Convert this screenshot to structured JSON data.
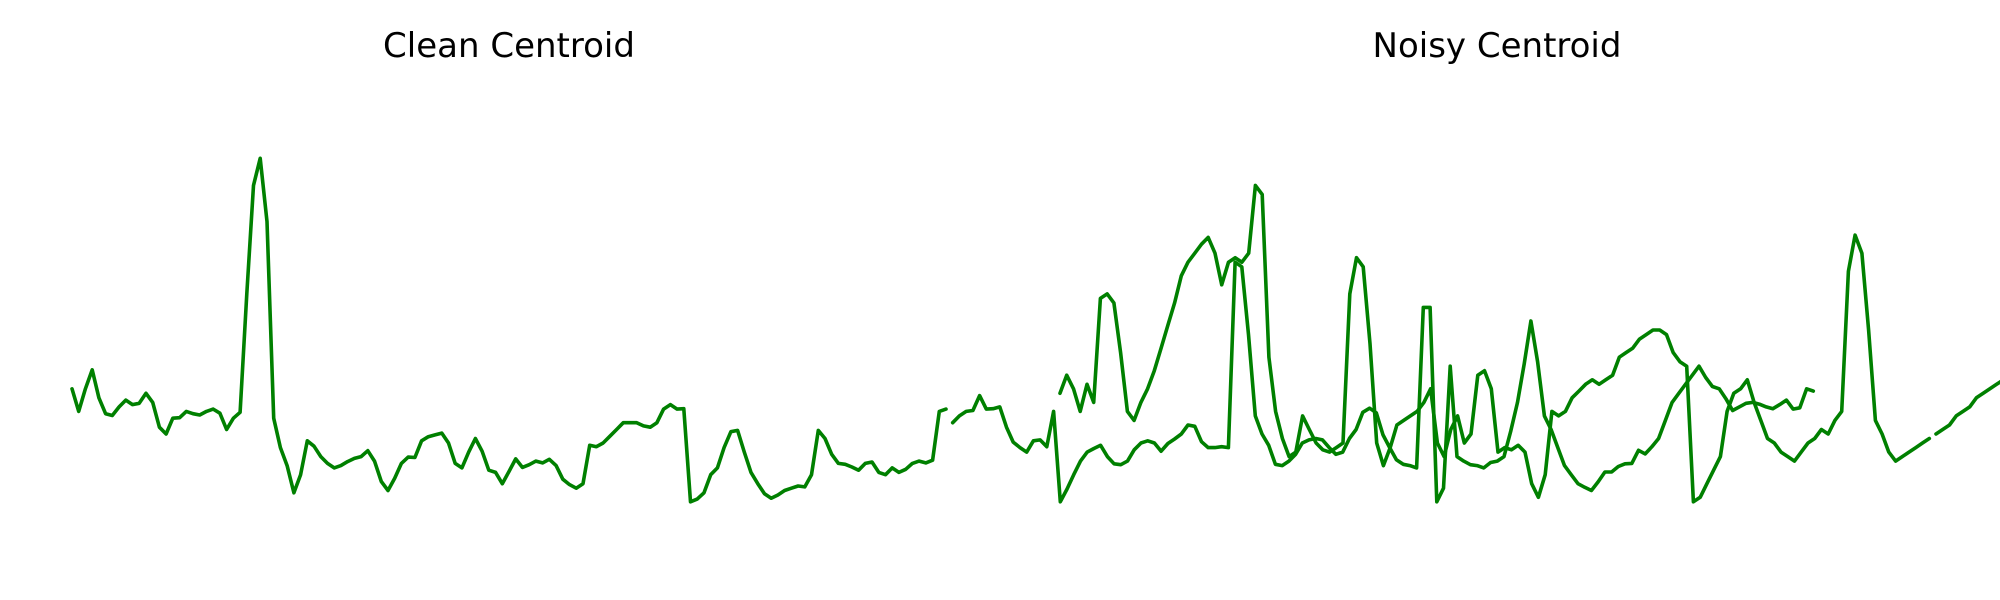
{
  "chart_data": [
    {
      "type": "line",
      "title": "Clean Centroid",
      "color": "#008000",
      "axes": "off",
      "grid": false,
      "xlim": [
        0,
        130
      ],
      "ylim": [
        0,
        1
      ],
      "series": [
        {
          "values": [
            0.35,
            0.3,
            0.35,
            0.392,
            0.33,
            0.295,
            0.291,
            0.31,
            0.325,
            0.315,
            0.318,
            0.34,
            0.32,
            0.265,
            0.25,
            0.285,
            0.286,
            0.3,
            0.295,
            0.292,
            0.3,
            0.305,
            0.296,
            0.26,
            0.285,
            0.298,
            0.56,
            0.8,
            0.86,
            0.72,
            0.285,
            0.22,
            0.18,
            0.12,
            0.16,
            0.235,
            0.223,
            0.2,
            0.185,
            0.175,
            0.18,
            0.189,
            0.196,
            0.2,
            0.213,
            0.19,
            0.145,
            0.125,
            0.152,
            0.185,
            0.199,
            0.198,
            0.235,
            0.244,
            0.248,
            0.252,
            0.23,
            0.185,
            0.175,
            0.21,
            0.24,
            0.212,
            0.17,
            0.165,
            0.14,
            0.167,
            0.195,
            0.176,
            0.182,
            0.19,
            0.186,
            0.194,
            0.18,
            0.15,
            0.138,
            0.13,
            0.14,
            0.225,
            0.222,
            0.23,
            0.245,
            0.26,
            0.275,
            0.275,
            0.275,
            0.268,
            0.265,
            0.275,
            0.305,
            0.315,
            0.305,
            0.306,
            0.1,
            0.106,
            0.12,
            0.16,
            0.175,
            0.22,
            0.255,
            0.258,
            0.21,
            0.165,
            0.14,
            0.118,
            0.108,
            0.115,
            0.125,
            0.13,
            0.135,
            0.133,
            0.16,
            0.258,
            0.24,
            0.205,
            0.185,
            0.183,
            0.177,
            0.17,
            0.185,
            0.188,
            0.165,
            0.16,
            0.175,
            0.165,
            0.172,
            0.185,
            0.19,
            0.186,
            0.192,
            0.3,
            0.305
          ]
        },
        {
          "values": [
            0.275,
            0.29,
            0.3,
            0.302,
            0.335,
            0.305,
            0.306,
            0.31,
            0.265,
            0.232,
            0.22,
            0.21,
            0.235,
            0.237,
            0.222,
            0.3,
            0.1,
            0.128,
            0.16,
            0.19,
            0.21,
            0.218,
            0.225,
            0.2,
            0.184,
            0.182,
            0.19,
            0.215,
            0.23,
            0.235,
            0.23,
            0.212,
            0.229,
            0.239,
            0.25,
            0.27,
            0.267,
            0.233,
            0.22,
            0.22,
            0.222,
            0.22,
            0.63,
            0.62,
            0.47,
            0.29,
            0.25,
            0.225,
            0.183,
            0.18,
            0.19,
            0.205,
            0.23,
            0.237,
            0.24,
            0.237,
            0.22,
            0.205,
            0.21,
            0.24,
            0.26,
            0.298,
            0.307,
            0.297,
            0.248,
            0.22,
            0.193,
            0.183,
            0.18,
            0.175,
            0.53,
            0.53,
            0.1,
            0.13,
            0.4,
            0.2,
            0.19,
            0.182,
            0.18,
            0.175,
            0.187,
            0.19,
            0.2,
            0.256,
            0.32,
            0.405,
            0.5,
            0.41,
            0.29,
            0.26,
            0.22,
            0.18,
            0.16,
            0.14,
            0.132,
            0.125,
            0.144,
            0.166,
            0.166,
            0.178,
            0.184,
            0.185,
            0.214,
            0.206,
            0.222,
            0.24,
            0.28,
            0.32,
            0.34,
            0.36,
            0.38,
            0.4,
            0.375,
            0.355,
            0.35,
            0.328,
            0.302,
            0.31,
            0.318,
            0.32,
            0.316,
            0.31,
            0.306,
            0.315,
            0.325,
            0.305,
            0.308,
            0.35,
            0.345
          ]
        }
      ]
    },
    {
      "type": "line",
      "title": "Noisy Centroid",
      "color": "#008000",
      "axes": "off",
      "grid": false,
      "xlim": [
        0,
        130
      ],
      "ylim": [
        0,
        1
      ],
      "series": [
        {
          "values": [
            0.34,
            0.38,
            0.35,
            0.3,
            0.36,
            0.32,
            0.55,
            0.56,
            0.54,
            0.43,
            0.3,
            0.28,
            0.32,
            0.35,
            0.39,
            0.44,
            0.49,
            0.54,
            0.6,
            0.63,
            0.65,
            0.67,
            0.685,
            0.65,
            0.58,
            0.63,
            0.64,
            0.63,
            0.65,
            0.8,
            0.78,
            0.42,
            0.3,
            0.24,
            0.2,
            0.21,
            0.29,
            0.26,
            0.23,
            0.215,
            0.21,
            0.22,
            0.23,
            0.56,
            0.64,
            0.62,
            0.45,
            0.23,
            0.18,
            0.22,
            0.27,
            0.28,
            0.29,
            0.3,
            0.32,
            0.35,
            0.23,
            0.2,
            0.26,
            0.29,
            0.23,
            0.25,
            0.38,
            0.39,
            0.35,
            0.21,
            0.22,
            0.215,
            0.225,
            0.21,
            0.14,
            0.11,
            0.16,
            0.3,
            0.29,
            0.3,
            0.33,
            0.345,
            0.36,
            0.37,
            0.36,
            0.37,
            0.38,
            0.42,
            0.43,
            0.44,
            0.46,
            0.47,
            0.48,
            0.48,
            0.47,
            0.43,
            0.41,
            0.4,
            0.1,
            0.11,
            0.14,
            0.17,
            0.2,
            0.3,
            0.34,
            0.35,
            0.37,
            0.32,
            0.28,
            0.24,
            0.23,
            0.21,
            0.2,
            0.19,
            0.21,
            0.23,
            0.24,
            0.26,
            0.25,
            0.28,
            0.3,
            0.61,
            0.69,
            0.65,
            0.48,
            0.28,
            0.25,
            0.21,
            0.19,
            0.2,
            0.21,
            0.22,
            0.23,
            0.24
          ]
        },
        {
          "values": [
            0.25,
            0.26,
            0.27,
            0.29,
            0.3,
            0.31,
            0.33,
            0.34,
            0.35,
            0.36,
            0.37,
            0.38,
            0.39,
            0.4,
            0.42,
            0.44,
            0.47,
            0.48,
            0.49,
            0.5,
            0.5,
            0.49,
            0.47,
            0.45,
            0.42,
            0.4,
            0.38,
            0.37,
            0.36,
            0.35,
            0.34,
            0.33,
            0.32,
            0.31,
            0.3,
            0.29,
            0.28,
            0.27,
            0.26,
            0.25,
            0.24,
            0.23,
            0.22,
            0.21,
            0.2,
            0.19,
            0.18,
            0.17,
            0.16,
            0.15,
            0.14,
            0.13,
            0.12,
            0.11,
            0.1,
            0.11,
            0.12,
            0.13,
            0.14,
            0.15,
            0.16,
            0.17,
            0.18,
            0.19,
            0.2,
            0.21,
            0.22,
            0.23,
            0.24,
            0.25,
            0.26,
            0.27,
            0.28,
            0.29,
            0.3,
            0.31,
            0.32,
            0.33,
            0.34,
            0.35,
            0.36,
            0.37,
            0.38,
            0.39,
            0.4,
            0.41,
            0.42,
            0.43,
            0.44,
            0.45,
            0.46,
            0.47,
            0.48,
            0.49,
            0.5,
            0.51,
            0.52,
            0.53,
            0.54,
            0.55,
            0.56,
            0.57,
            0.58,
            0.59,
            0.6,
            0.61,
            0.62,
            0.63,
            0.64,
            0.65,
            0.66,
            0.67,
            0.68,
            0.69,
            0.7,
            0.71,
            0.72,
            0.73,
            0.74,
            0.75,
            0.76,
            0.77,
            0.78,
            0.79,
            0.8,
            0.81,
            0.82,
            0.83,
            0.84,
            0.85,
            0.86
          ]
        }
      ]
    }
  ]
}
